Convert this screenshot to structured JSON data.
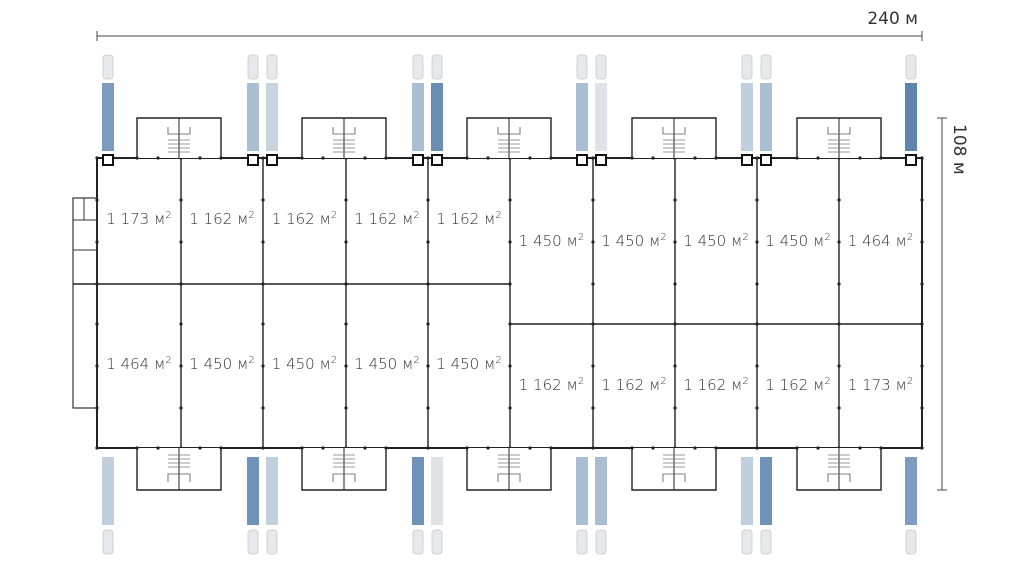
{
  "dimensions": {
    "width_label": "240 м",
    "depth_label": "108 м"
  },
  "unit_suffix": "м",
  "unit_sup": "2",
  "units_top": [
    "1 173",
    "1 162",
    "1 162",
    "1 162",
    "1 162",
    "1 450",
    "1 450",
    "1 450",
    "1 450",
    "1 464"
  ],
  "units_bottom": [
    "1 464",
    "1 450",
    "1 450",
    "1 450",
    "1 450",
    "1 162",
    "1 162",
    "1 162",
    "1 162",
    "1 173"
  ],
  "trucks_top_colors": [
    "#7d9cc0",
    "#a9bed2",
    "#c8d5df",
    "#a9bed2",
    "#6a8db3",
    "#a9bed2",
    "#dde3e8",
    "#c0cfdb",
    "#a9bed2",
    "#5f85ad"
  ],
  "trucks_bottom_colors": [
    "#c0cfdb",
    "#6f93b8",
    "#c0cfdb",
    "#6f93b8",
    "#e0e3e5",
    "#a9bed2",
    "#a9bed2",
    "#c0cfdb",
    "#6f93b8",
    "#7d9cc0"
  ]
}
